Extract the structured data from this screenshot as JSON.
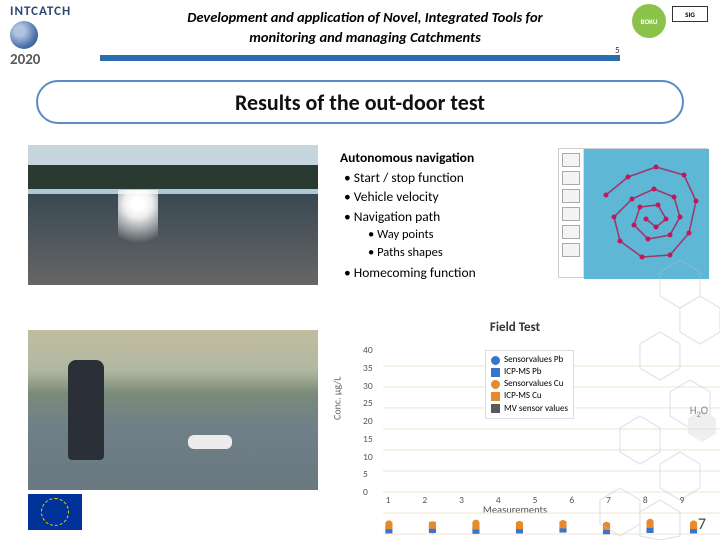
{
  "header": {
    "project": "INTCATCH",
    "year": "2020",
    "title_line1": "Development and application of Novel, Integrated Tools for",
    "title_line2": "monitoring and managing Catchments",
    "boku": "BOKU",
    "sig": "SIG",
    "rule_color": "#2b6cb0",
    "tick": "5"
  },
  "section": {
    "title": "Results of the out-door test",
    "border_color": "#5a8bc4"
  },
  "nav": {
    "heading": "Autonomous navigation",
    "items": [
      "Start / stop function",
      "Vehicle velocity",
      "Navigation path"
    ],
    "subitems": [
      "Way points",
      "Paths shapes"
    ],
    "last": "Homecoming function"
  },
  "map": {
    "bg_color": "#5fb7d6",
    "path_color": "#9c3a6f",
    "node_color": "#c2185b",
    "points": [
      [
        22,
        46
      ],
      [
        44,
        28
      ],
      [
        72,
        18
      ],
      [
        100,
        26
      ],
      [
        112,
        52
      ],
      [
        105,
        84
      ],
      [
        86,
        106
      ],
      [
        58,
        108
      ],
      [
        36,
        92
      ],
      [
        30,
        68
      ],
      [
        48,
        50
      ],
      [
        70,
        40
      ],
      [
        90,
        48
      ],
      [
        96,
        68
      ],
      [
        86,
        86
      ],
      [
        64,
        90
      ],
      [
        50,
        76
      ],
      [
        56,
        58
      ],
      [
        74,
        56
      ],
      [
        82,
        70
      ],
      [
        72,
        78
      ],
      [
        62,
        70
      ]
    ]
  },
  "chart": {
    "title": "Field Test",
    "xlabel": "Measurements",
    "ylabel": "Conc. µg/L",
    "ylim": [
      0,
      40
    ],
    "ytick_step": 5,
    "xlim": [
      1,
      9
    ],
    "grid_color": "#f3e8d6",
    "background": "#ffffff",
    "marker_size": 6,
    "legend": [
      {
        "label": "Sensorvalues Pb",
        "color": "#3874c9",
        "shape": "circle"
      },
      {
        "label": "ICP-MS Pb",
        "color": "#3874c9",
        "shape": "square"
      },
      {
        "label": "Sensorvalues Cu",
        "color": "#e68a2e",
        "shape": "circle"
      },
      {
        "label": "ICP-MS Cu",
        "color": "#e68a2e",
        "shape": "square"
      },
      {
        "label": "MV sensor values",
        "color": "#5a5a5a",
        "shape": "square"
      }
    ],
    "series": {
      "pb_sensor": {
        "color": "#3874c9",
        "shape": "circle",
        "y": [
          1.2,
          1.0,
          1.4,
          1.1,
          1.3,
          1.0,
          1.5,
          1.2,
          1.1
        ]
      },
      "pb_icp": {
        "color": "#3874c9",
        "shape": "square",
        "y": [
          1.0,
          1.1,
          0.9,
          1.0,
          1.2,
          0.8,
          1.1,
          1.0,
          0.9
        ]
      },
      "cu_sensor": {
        "color": "#e68a2e",
        "shape": "circle",
        "y": [
          2.4,
          2.2,
          2.6,
          2.3,
          2.5,
          2.1,
          2.8,
          2.4,
          2.2
        ]
      },
      "cu_icp": {
        "color": "#e68a2e",
        "shape": "square",
        "y": [
          2.0,
          2.1,
          1.9,
          2.0,
          2.2,
          1.8,
          2.3,
          2.0,
          1.9
        ]
      }
    }
  },
  "footer": {
    "pagenum": "7",
    "h2o": "H",
    "h2o_sub": "2",
    "h2o_tail": "O"
  }
}
